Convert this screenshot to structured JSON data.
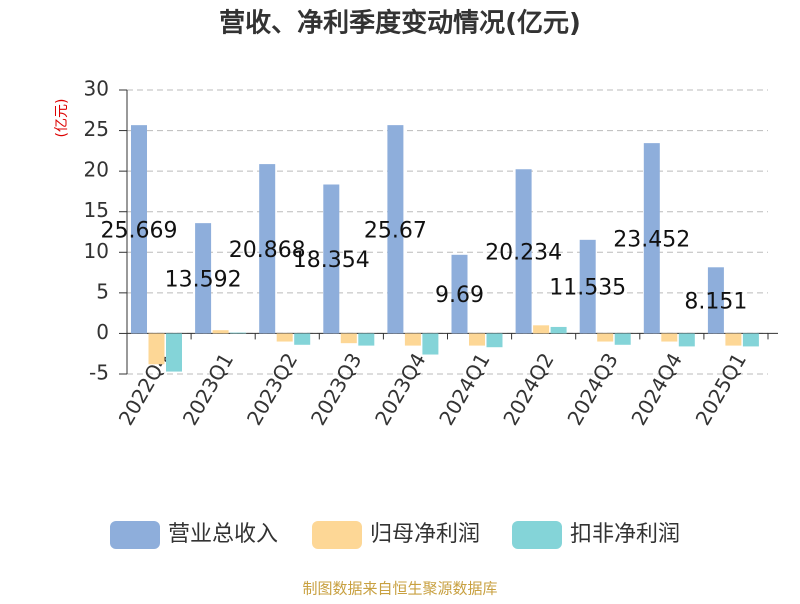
{
  "chart_data": {
    "type": "bar",
    "title": "营收、净利季度变动情况(亿元)",
    "y_label": "(亿元)",
    "source": "制图数据来自恒生聚源数据库",
    "categories": [
      "2022Q4",
      "2023Q1",
      "2023Q2",
      "2023Q3",
      "2023Q4",
      "2024Q1",
      "2024Q2",
      "2024Q3",
      "2024Q4",
      "2025Q1"
    ],
    "series": [
      {
        "name": "营业总收入",
        "color": "#8eaedb",
        "values": [
          25.669,
          13.592,
          20.868,
          18.354,
          25.67,
          9.69,
          20.234,
          11.535,
          23.452,
          8.151
        ],
        "labeled": true
      },
      {
        "name": "归母净利润",
        "color": "#fdd796",
        "values": [
          -3.8,
          0.4,
          -1.0,
          -1.2,
          -1.5,
          -1.5,
          1.0,
          -1.0,
          -1.0,
          -1.5
        ]
      },
      {
        "name": "扣非净利润",
        "color": "#84d4d8",
        "values": [
          -4.7,
          0.1,
          -1.4,
          -1.5,
          -2.6,
          -1.7,
          0.8,
          -1.4,
          -1.6,
          -1.6
        ]
      }
    ],
    "ylim": [
      -5,
      30
    ],
    "yticks": [
      -5,
      0,
      5,
      10,
      15,
      20,
      25,
      30
    ],
    "grid": true
  }
}
